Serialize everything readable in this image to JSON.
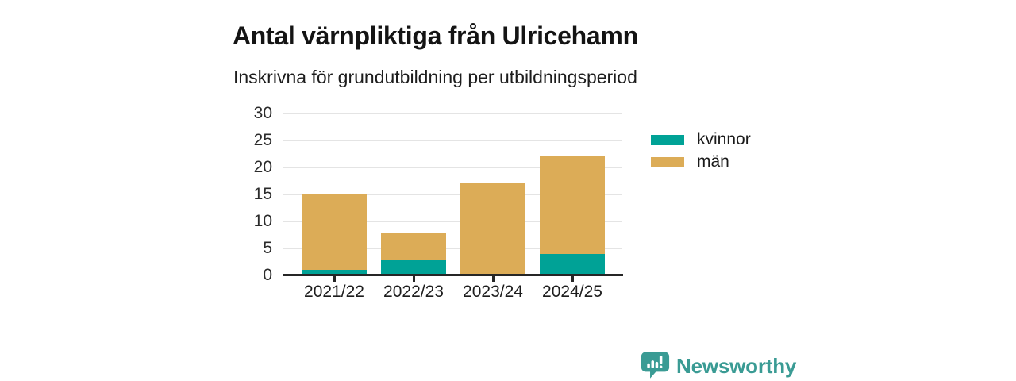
{
  "title": "Antal värnpliktiga från Ulricehamn",
  "subtitle": "Inskrivna för grundutbildning per utbildningsperiod",
  "chart_data": {
    "type": "bar",
    "stacked": true,
    "categories": [
      "2021/22",
      "2022/23",
      "2023/24",
      "2024/25"
    ],
    "series": [
      {
        "name": "kvinnor",
        "color": "#00a296",
        "values": [
          1,
          3,
          0,
          4
        ]
      },
      {
        "name": "män",
        "color": "#dcac57",
        "values": [
          14,
          5,
          17,
          18
        ]
      }
    ],
    "totals": [
      15,
      8,
      17,
      22
    ],
    "title": "Antal värnpliktiga från Ulricehamn",
    "subtitle": "Inskrivna för grundutbildning per utbildningsperiod",
    "xlabel": "",
    "ylabel": "",
    "ylim": [
      0,
      30
    ],
    "yticks": [
      0,
      5,
      10,
      15,
      20,
      25,
      30
    ],
    "grid": true,
    "legend_position": "right",
    "gridline_color": "#e4e4e4",
    "axis_color": "#262626"
  },
  "legend": {
    "items": [
      {
        "label": "kvinnor",
        "color": "#00a296"
      },
      {
        "label": "män",
        "color": "#dcac57"
      }
    ]
  },
  "branding": {
    "logo_text": "Newsworthy",
    "color": "#3a9b94"
  }
}
